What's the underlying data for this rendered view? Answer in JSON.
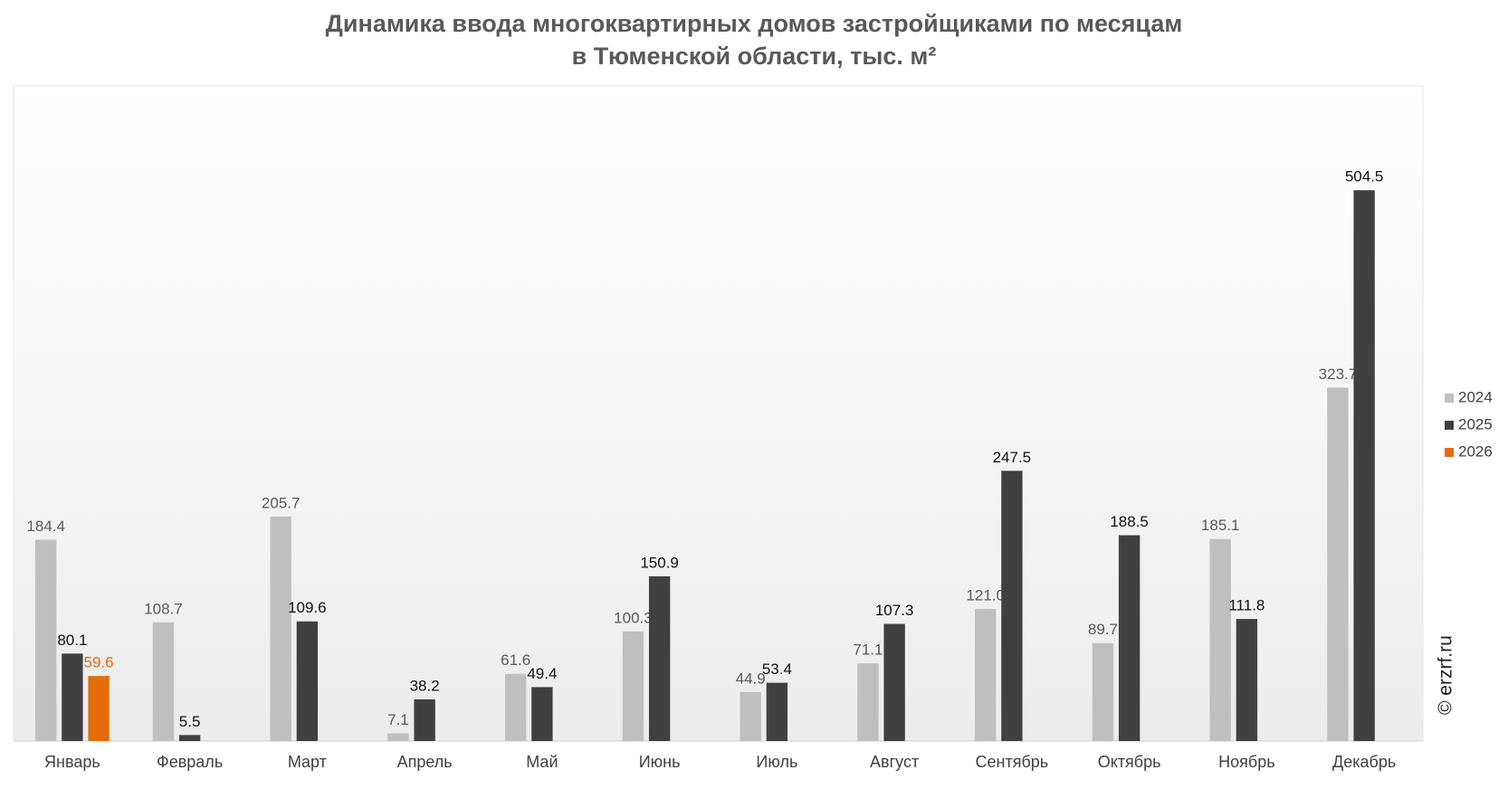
{
  "chart_data": {
    "type": "bar",
    "title": "Динамика ввода многоквартирных домов застройщиками по месяцам",
    "subtitle": "в Тюменской области, тыс. м²",
    "categories": [
      "Январь",
      "Февраль",
      "Март",
      "Апрель",
      "Май",
      "Июнь",
      "Июль",
      "Август",
      "Сентябрь",
      "Октябрь",
      "Ноябрь",
      "Декабрь"
    ],
    "series": [
      {
        "name": "2024",
        "color": "#bfbfbf",
        "label_color": "#595959",
        "values": [
          184.4,
          108.7,
          205.7,
          7.1,
          61.6,
          100.3,
          44.9,
          71.1,
          121.0,
          89.7,
          185.1,
          323.7
        ],
        "value_labels": [
          "184.4",
          "108.7",
          "205.7",
          "7.1",
          "61.6",
          "100.3",
          "44.9",
          "71.1",
          "121.0",
          "89.7",
          "185.1",
          "323.7"
        ]
      },
      {
        "name": "2025",
        "color": "#404040",
        "label_color": "#111111",
        "values": [
          80.1,
          5.5,
          109.6,
          38.2,
          49.4,
          150.9,
          53.4,
          107.3,
          247.5,
          188.5,
          111.8,
          504.5
        ],
        "value_labels": [
          "80.1",
          "5.5",
          "109.6",
          "38.2",
          "49.4",
          "150.9",
          "53.4",
          "107.3",
          "247.5",
          "188.5",
          "111.8",
          "504.5"
        ]
      },
      {
        "name": "2026",
        "color": "#e46c0a",
        "label_color": "#e46c0a",
        "values": [
          59.6,
          null,
          null,
          null,
          null,
          null,
          null,
          null,
          null,
          null,
          null,
          null
        ],
        "value_labels": [
          "59.6",
          null,
          null,
          null,
          null,
          null,
          null,
          null,
          null,
          null,
          null,
          null
        ]
      }
    ],
    "ylim": [
      0,
      600
    ],
    "legend": "right",
    "watermark": "© erzrf.ru"
  }
}
